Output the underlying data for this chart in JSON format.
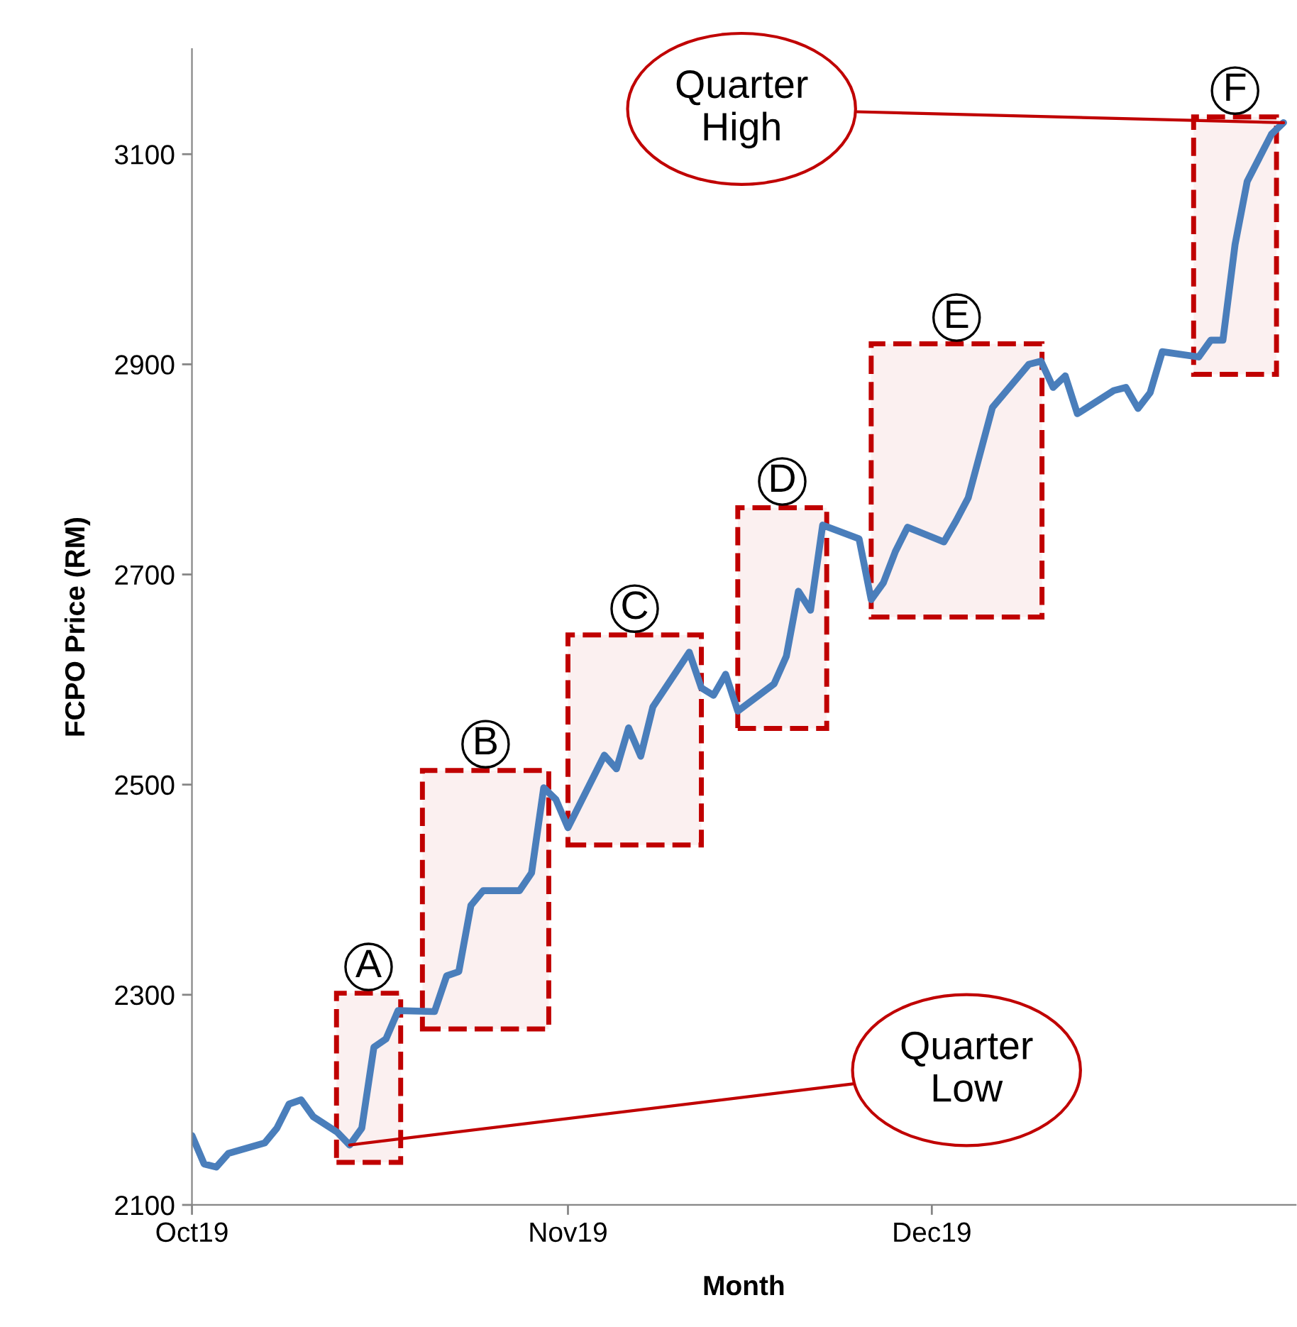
{
  "chart_data": {
    "type": "line",
    "xlabel": "Month",
    "ylabel": "FCPO Price (RM)",
    "x": [
      "2019-10-01",
      "2019-10-02",
      "2019-10-03",
      "2019-10-04",
      "2019-10-07",
      "2019-10-08",
      "2019-10-09",
      "2019-10-10",
      "2019-10-11",
      "2019-10-13",
      "2019-10-14",
      "2019-10-15",
      "2019-10-16",
      "2019-10-17",
      "2019-10-18",
      "2019-10-21",
      "2019-10-22",
      "2019-10-23",
      "2019-10-24",
      "2019-10-25",
      "2019-10-28",
      "2019-10-29",
      "2019-10-30",
      "2019-10-31",
      "2019-11-01",
      "2019-11-04",
      "2019-11-05",
      "2019-11-06",
      "2019-11-07",
      "2019-11-08",
      "2019-11-11",
      "2019-11-12",
      "2019-11-13",
      "2019-11-14",
      "2019-11-15",
      "2019-11-18",
      "2019-11-19",
      "2019-11-20",
      "2019-11-21",
      "2019-11-22",
      "2019-11-25",
      "2019-11-26",
      "2019-11-27",
      "2019-11-28",
      "2019-11-29",
      "2019-12-02",
      "2019-12-03",
      "2019-12-04",
      "2019-12-06",
      "2019-12-09",
      "2019-12-10",
      "2019-12-11",
      "2019-12-12",
      "2019-12-13",
      "2019-12-16",
      "2019-12-17",
      "2019-12-18",
      "2019-12-19",
      "2019-12-20",
      "2019-12-23",
      "2019-12-24",
      "2019-12-25",
      "2019-12-26",
      "2019-12-27",
      "2019-12-29",
      "2019-12-30"
    ],
    "series": [
      {
        "color": "#4a7ebb",
        "values": [
          2166,
          2139,
          2136,
          2149,
          2159,
          2173,
          2196,
          2200,
          2184,
          2169,
          2157,
          2173,
          2250,
          2258,
          2285,
          2284,
          2318,
          2322,
          2385,
          2399,
          2399,
          2416,
          2497,
          2486,
          2459,
          2528,
          2515,
          2554,
          2527,
          2574,
          2626,
          2592,
          2585,
          2605,
          2570,
          2596,
          2622,
          2684,
          2666,
          2747,
          2734,
          2676,
          2692,
          2722,
          2745,
          2731,
          2751,
          2773,
          2859,
          2900,
          2903,
          2878,
          2889,
          2853,
          2875,
          2878,
          2858,
          2873,
          2912,
          2907,
          2923,
          2923,
          3014,
          3074,
          3119,
          3130
        ]
      }
    ],
    "xlim": [
      "2019-10-01",
      "2019-12-31"
    ],
    "xticks": [
      {
        "value": "2019-10-01",
        "label": "Oct19"
      },
      {
        "value": "2019-11-01",
        "label": "Nov19"
      },
      {
        "value": "2019-12-01",
        "label": "Dec19"
      }
    ],
    "ylim": [
      2100,
      3200
    ],
    "yticks": [
      2100,
      2300,
      2500,
      2700,
      2900,
      3100
    ],
    "bands": [
      {
        "axis": "x",
        "from": "2019-10-12T22:00",
        "to": "2019-10-18T05:00",
        "label": "A",
        "color": "#c00000"
      },
      {
        "axis": "x",
        "from": "2019-10-20T00:00",
        "to": "2019-10-30T10:00",
        "label": "B",
        "color": "#c00000"
      },
      {
        "axis": "x",
        "from": "2019-11-01T00:00",
        "to": "2019-11-12T00:00",
        "label": "C",
        "color": "#c00000"
      },
      {
        "axis": "x",
        "from": "2019-11-15T00:00",
        "to": "2019-11-22T08:00",
        "label": "D",
        "color": "#c00000"
      },
      {
        "axis": "x",
        "from": "2019-11-26T00:00",
        "to": "2019-12-10T02:00",
        "label": "E",
        "color": "#c00000"
      },
      {
        "axis": "x",
        "from": "2019-12-22T14:00",
        "to": "2019-12-29T10:00",
        "label": "F",
        "color": "#c00000"
      }
    ],
    "annotations": [
      {
        "text": "Quarter\nLow",
        "x": "2019-10-14",
        "y": 2157
      },
      {
        "text": "Quarter\nHigh",
        "x": "2019-12-30",
        "y": 3130
      }
    ],
    "grid": false,
    "legend": false
  }
}
